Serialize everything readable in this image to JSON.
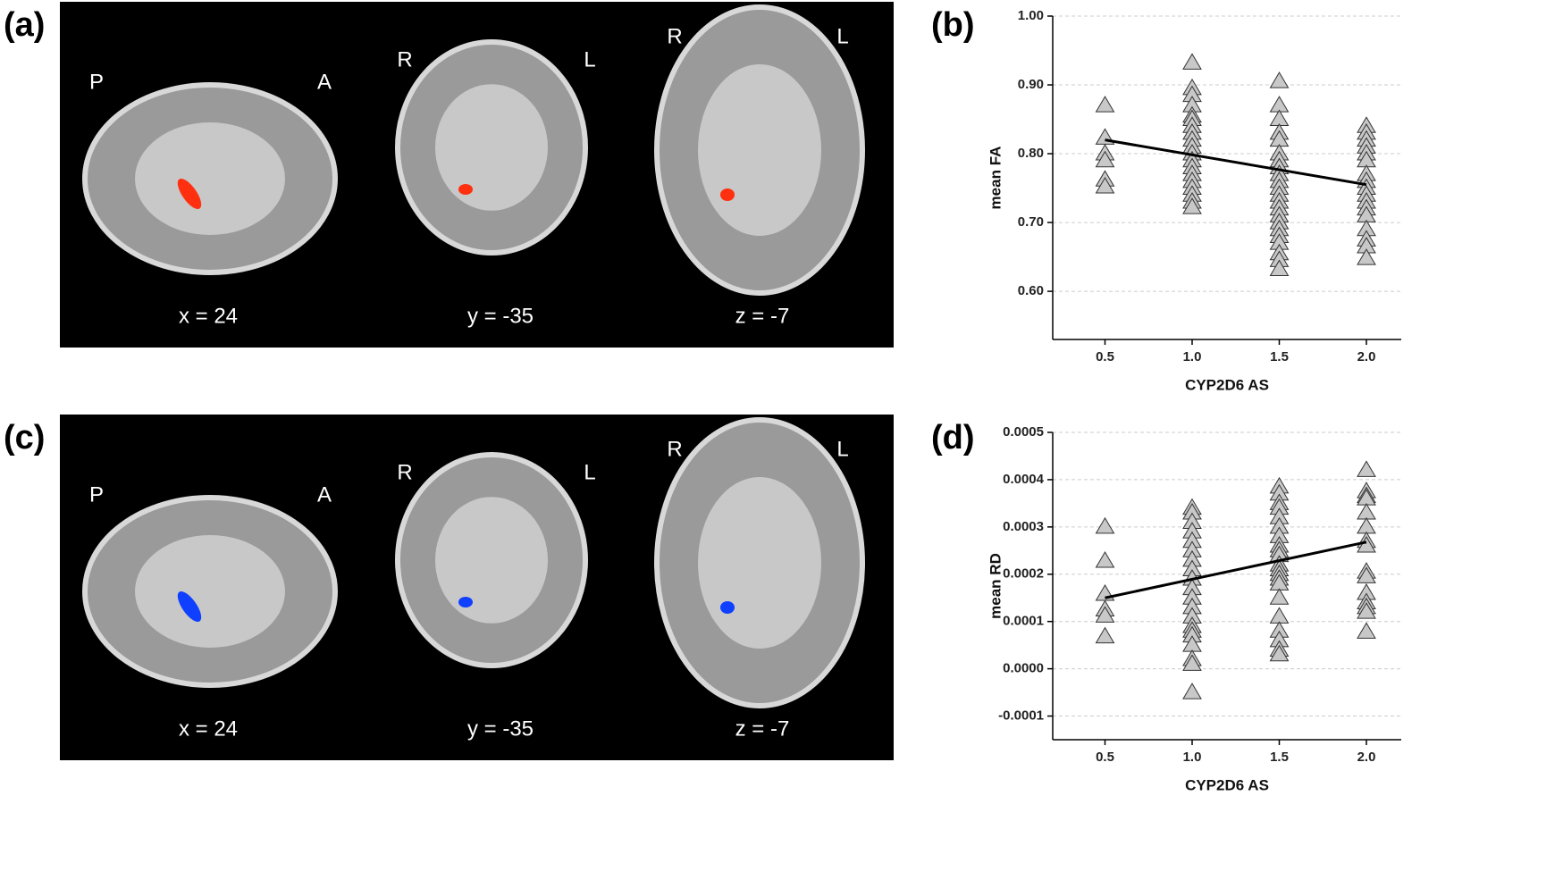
{
  "image_panels": [
    {
      "label": "(a)",
      "views": [
        {
          "left": "P",
          "right": "A",
          "caption": "x = 24"
        },
        {
          "left": "R",
          "right": "L",
          "caption": "y = -35"
        },
        {
          "left": "R",
          "right": "L",
          "caption": "z = -7"
        }
      ],
      "blob_color": "#ff3010"
    },
    {
      "label": "(c)",
      "views": [
        {
          "left": "P",
          "right": "A",
          "caption": "x = 24"
        },
        {
          "left": "R",
          "right": "L",
          "caption": "y = -35"
        },
        {
          "left": "R",
          "right": "L",
          "caption": "z = -7"
        }
      ],
      "blob_color": "#1040ff"
    }
  ],
  "chart_data": [
    {
      "type": "scatter",
      "panel_label": "(b)",
      "xlabel": "CYP2D6 AS",
      "ylabel": "mean FA",
      "xlim": [
        0.2,
        2.2
      ],
      "xticks": [
        0.5,
        {
          "value": 1,
          "label": "1.0"
        },
        1.5,
        {
          "value": 2,
          "label": "2.0"
        }
      ],
      "ylim": [
        0.53,
        1.0
      ],
      "yticks": [
        {
          "value": 0.6,
          "label": "0.60"
        },
        {
          "value": 0.7,
          "label": "0.70"
        },
        {
          "value": 0.8,
          "label": "0.80"
        },
        {
          "value": 0.9,
          "label": "0.90"
        },
        {
          "value": 1,
          "label": "1.00"
        }
      ],
      "grid": true,
      "series": [
        {
          "color": "#c8c8c8",
          "x": [
            0.5,
            0.5,
            0.5,
            0.5,
            0.5,
            0.5,
            1,
            1,
            1,
            1,
            1,
            1,
            1,
            1,
            1,
            1,
            1,
            1,
            1,
            1,
            1,
            1,
            1,
            1,
            1,
            1.5,
            1.5,
            1.5,
            1.5,
            1.5,
            1.5,
            1.5,
            1.5,
            1.5,
            1.5,
            1.5,
            1.5,
            1.5,
            1.5,
            1.5,
            1.5,
            1.5,
            1.5,
            1.5,
            1.5,
            1.5,
            1.5,
            2,
            2,
            2,
            2,
            2,
            2,
            2,
            2,
            2,
            2,
            2,
            2,
            2,
            2,
            2,
            2,
            2
          ],
          "values": [
            0.87,
            0.823,
            0.8,
            0.79,
            0.762,
            0.752,
            0.932,
            0.895,
            0.885,
            0.87,
            0.855,
            0.85,
            0.84,
            0.83,
            0.82,
            0.81,
            0.8,
            0.79,
            0.78,
            0.77,
            0.76,
            0.75,
            0.74,
            0.73,
            0.722,
            0.905,
            0.87,
            0.85,
            0.83,
            0.82,
            0.8,
            0.79,
            0.78,
            0.77,
            0.76,
            0.75,
            0.74,
            0.73,
            0.72,
            0.71,
            0.7,
            0.69,
            0.68,
            0.67,
            0.655,
            0.645,
            0.632,
            0.84,
            0.83,
            0.82,
            0.81,
            0.8,
            0.79,
            0.77,
            0.76,
            0.75,
            0.74,
            0.73,
            0.72,
            0.71,
            0.69,
            0.675,
            0.665,
            0.648
          ]
        }
      ],
      "fit_line": {
        "color": "#000000",
        "x": [
          0.5,
          2
        ],
        "values": [
          0.82,
          0.755
        ]
      }
    },
    {
      "type": "scatter",
      "panel_label": "(d)",
      "xlabel": "CYP2D6 AS",
      "ylabel": "mean RD",
      "xlim": [
        0.2,
        2.2
      ],
      "xticks": [
        0.5,
        {
          "value": 1,
          "label": "1.0"
        },
        1.5,
        {
          "value": 2,
          "label": "2.0"
        }
      ],
      "ylim": [
        -0.00015,
        0.0005
      ],
      "yticks": [
        -0.0001,
        {
          "value": 0,
          "label": "0.0000"
        },
        0.0001,
        0.0002,
        0.0003,
        0.0004,
        0.0005
      ],
      "grid": true,
      "series": [
        {
          "color": "#c8c8c8",
          "x": [
            0.5,
            0.5,
            0.5,
            0.5,
            0.5,
            0.5,
            1,
            1,
            1,
            1,
            1,
            1,
            1,
            1,
            1,
            1,
            1,
            1,
            1,
            1,
            1,
            1,
            1,
            1,
            1,
            1,
            1.5,
            1.5,
            1.5,
            1.5,
            1.5,
            1.5,
            1.5,
            1.5,
            1.5,
            1.5,
            1.5,
            1.5,
            1.5,
            1.5,
            1.5,
            1.5,
            1.5,
            1.5,
            1.5,
            1.5,
            1.5,
            2,
            2,
            2,
            2,
            2,
            2,
            2,
            2,
            2,
            2,
            2,
            2,
            2,
            2,
            2
          ],
          "values": [
            0.0003,
            0.000228,
            0.000158,
            0.000125,
            0.000112,
            6.8e-05,
            0.00034,
            0.00033,
            0.00031,
            0.00029,
            0.00027,
            0.00025,
            0.00023,
            0.00021,
            0.00019,
            0.00017,
            0.00015,
            0.00013,
            0.00011,
            9e-05,
            8e-05,
            7e-05,
            5e-05,
            2e-05,
            1e-05,
            -5e-05,
            0.000385,
            0.00037,
            0.00035,
            0.00034,
            0.00032,
            0.0003,
            0.00028,
            0.00026,
            0.00025,
            0.00024,
            0.00022,
            0.00021,
            0.0002,
            0.00019,
            0.00018,
            0.00015,
            0.00011,
            8e-05,
            6e-05,
            4e-05,
            3e-05,
            0.00042,
            0.000375,
            0.000365,
            0.00036,
            0.00033,
            0.0003,
            0.00027,
            0.00026,
            0.000205,
            0.000195,
            0.00016,
            0.00014,
            0.00013,
            0.00012,
            7.8e-05
          ]
        }
      ],
      "fit_line": {
        "color": "#000000",
        "x": [
          0.5,
          2
        ],
        "values": [
          0.00015,
          0.000268
        ]
      }
    }
  ]
}
